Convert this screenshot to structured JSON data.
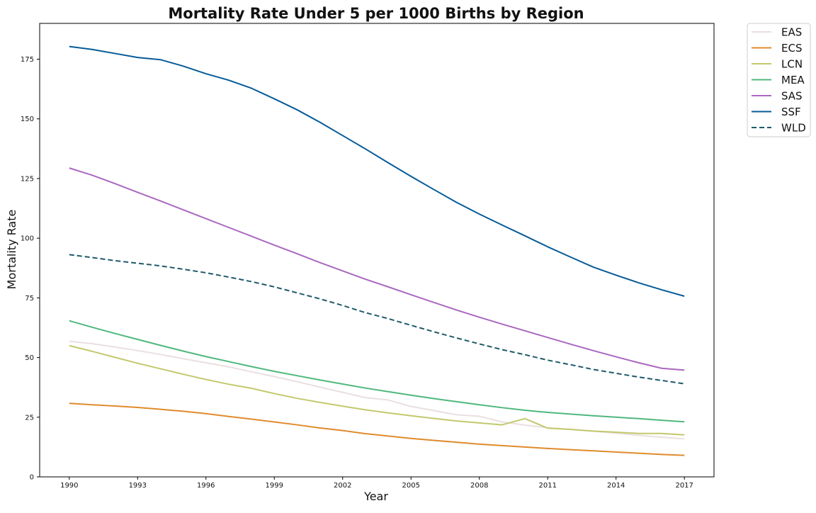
{
  "chart_data": {
    "type": "line",
    "title": "Mortality Rate Under 5 per 1000 Births by Region",
    "xlabel": "Year",
    "ylabel": "Mortality Rate",
    "xlim": [
      1988.7,
      2018.3
    ],
    "ylim": [
      0,
      190
    ],
    "xticks": [
      1990,
      1993,
      1996,
      1999,
      2002,
      2005,
      2008,
      2011,
      2014,
      2017
    ],
    "yticks": [
      0,
      25,
      50,
      75,
      100,
      125,
      150,
      175
    ],
    "grid": false,
    "legend_position": "outside-top-right",
    "x": [
      1990,
      1991,
      1992,
      1993,
      1994,
      1995,
      1996,
      1997,
      1998,
      1999,
      2000,
      2001,
      2002,
      2003,
      2004,
      2005,
      2006,
      2007,
      2008,
      2009,
      2010,
      2011,
      2012,
      2013,
      2014,
      2015,
      2016,
      2017
    ],
    "series": [
      {
        "name": "EAS",
        "color": "#eadfe0",
        "dash": "solid",
        "values": [
          56.8,
          55.8,
          54.4,
          52.9,
          51.3,
          49.5,
          47.8,
          46.1,
          44.0,
          42.0,
          39.9,
          37.6,
          35.4,
          33.2,
          32.2,
          29.5,
          27.8,
          26.0,
          25.4,
          23.0,
          21.7,
          20.6,
          19.9,
          19.1,
          18.3,
          17.4,
          16.6,
          15.9
        ]
      },
      {
        "name": "ECS",
        "color": "#e08b2d",
        "dash": "solid",
        "values": [
          30.8,
          30.2,
          29.7,
          29.1,
          28.3,
          27.5,
          26.5,
          25.3,
          24.2,
          23.0,
          21.8,
          20.5,
          19.4,
          18.1,
          17.1,
          16.1,
          15.3,
          14.5,
          13.7,
          13.1,
          12.5,
          11.9,
          11.4,
          10.9,
          10.4,
          9.9,
          9.4,
          9.0
        ]
      },
      {
        "name": "LCN",
        "color": "#c3c86d",
        "dash": "solid",
        "values": [
          55.0,
          52.6,
          50.1,
          47.6,
          45.3,
          43.0,
          40.8,
          38.8,
          37.1,
          34.9,
          32.9,
          31.2,
          29.6,
          28.1,
          26.8,
          25.6,
          24.5,
          23.4,
          22.6,
          21.8,
          24.4,
          20.4,
          19.9,
          19.2,
          18.7,
          18.2,
          18.2,
          17.6
        ]
      },
      {
        "name": "MEA",
        "color": "#4fb87d",
        "dash": "solid",
        "values": [
          65.4,
          62.7,
          60.1,
          57.6,
          55.1,
          52.7,
          50.4,
          48.3,
          46.2,
          44.2,
          42.4,
          40.6,
          38.9,
          37.2,
          35.7,
          34.2,
          32.8,
          31.5,
          30.2,
          29.0,
          27.9,
          27.0,
          26.3,
          25.6,
          25.0,
          24.4,
          23.7,
          23.1
        ]
      },
      {
        "name": "SAS",
        "color": "#aa68c0",
        "dash": "solid",
        "values": [
          129.4,
          126.4,
          122.9,
          119.2,
          115.6,
          111.9,
          108.2,
          104.5,
          100.8,
          97.1,
          93.5,
          89.8,
          86.3,
          82.8,
          79.6,
          76.3,
          73.1,
          69.9,
          66.9,
          64.0,
          61.2,
          58.4,
          55.6,
          52.9,
          50.3,
          47.8,
          45.5,
          44.7
        ]
      },
      {
        "name": "SSF",
        "color": "#065b99",
        "dash": "solid",
        "values": [
          180.3,
          179.1,
          177.4,
          175.7,
          174.8,
          172.1,
          168.9,
          166.2,
          162.8,
          158.4,
          153.8,
          148.6,
          143.0,
          137.4,
          131.6,
          125.9,
          120.4,
          115.0,
          110.1,
          105.5,
          101.0,
          96.4,
          92.1,
          87.9,
          84.5,
          81.3,
          78.4,
          75.7
        ]
      },
      {
        "name": "WLD",
        "color": "#1f5a6b",
        "dash": "dashed",
        "values": [
          93.1,
          91.9,
          90.6,
          89.5,
          88.4,
          87.0,
          85.5,
          83.7,
          81.8,
          79.6,
          77.1,
          74.6,
          71.8,
          68.8,
          66.3,
          63.5,
          60.8,
          58.2,
          55.7,
          53.3,
          51.2,
          48.9,
          47.0,
          45.0,
          43.4,
          41.8,
          40.4,
          39.0
        ]
      }
    ]
  }
}
